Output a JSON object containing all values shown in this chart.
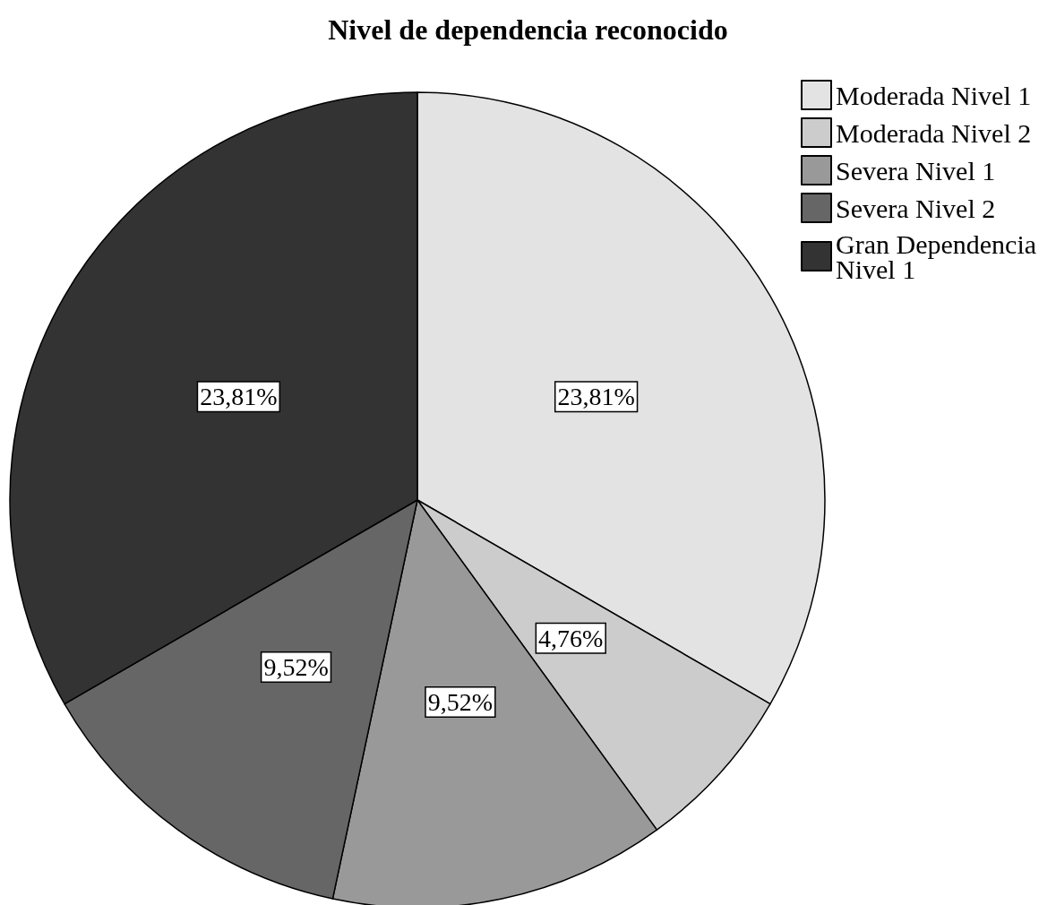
{
  "chart_data": {
    "type": "pie",
    "title": "Nivel de dependencia reconocido",
    "categories": [
      "Moderada Nivel 1",
      "Moderada Nivel 2",
      "Severa Nivel 1",
      "Severa Nivel 2",
      "Gran Dependencia Nivel 1"
    ],
    "values": [
      23.81,
      4.76,
      9.52,
      9.52,
      23.81
    ],
    "value_labels": [
      "23,81%",
      "4,76%",
      "9,52%",
      "9,52%",
      "23,81%"
    ],
    "colors": [
      "#e3e3e3",
      "#cccccc",
      "#999999",
      "#666666",
      "#333333"
    ],
    "legend": "top right"
  }
}
